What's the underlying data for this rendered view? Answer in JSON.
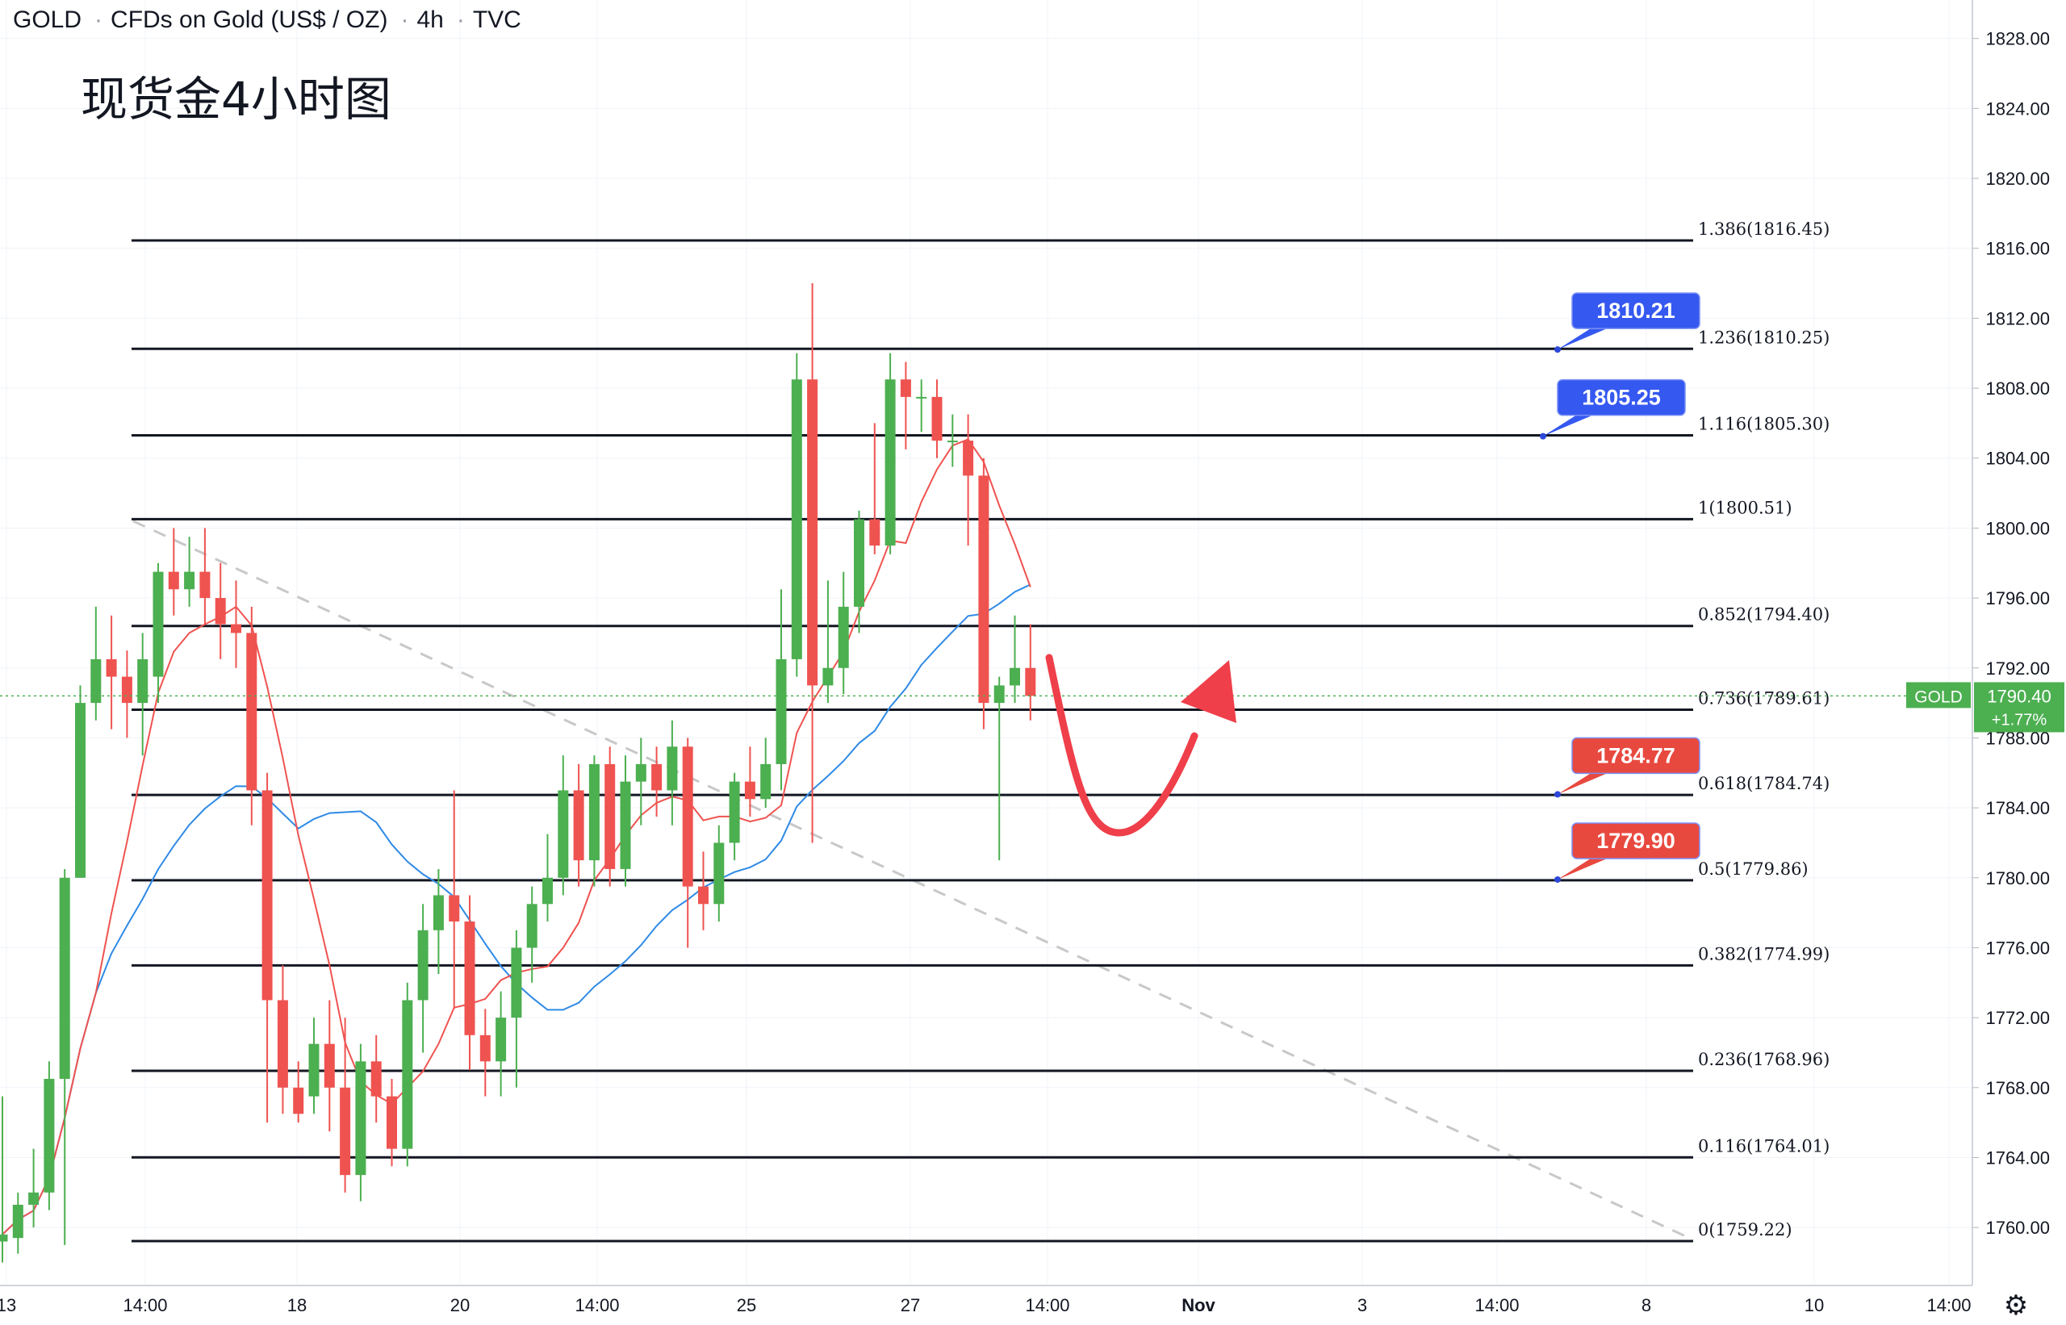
{
  "header": {
    "symbol": "GOLD",
    "description": "CFDs on Gold (US$ / OZ)",
    "interval": "4h",
    "source": "TVC"
  },
  "annotation_title": "现货金4小时图",
  "colors": {
    "up": "#4caf50",
    "down": "#ef5350",
    "ma_fast": "#ef5350",
    "ma_slow": "#2f8ae6",
    "fib_line": "#131722",
    "trendline": "#c8c8c8",
    "callout_blue": "#3558f0",
    "callout_red": "#e8493f",
    "last_price": "#4caf50",
    "arrow": "#ef3f4a"
  },
  "chart_data": {
    "type": "candlestick",
    "y_range": [
      1756.5,
      1829
    ],
    "y_ticks": [
      "1828.00",
      "1824.00",
      "1820.00",
      "1816.00",
      "1812.00",
      "1808.00",
      "1804.00",
      "1800.00",
      "1796.00",
      "1792.00",
      "1788.00",
      "1784.00",
      "1780.00",
      "1776.00",
      "1772.00",
      "1768.00",
      "1764.00",
      "1760.00"
    ],
    "x_ticks": [
      "13",
      "14:00",
      "18",
      "20",
      "14:00",
      "25",
      "27",
      "14:00",
      "Nov",
      "3",
      "14:00",
      "8",
      "10",
      "14:00"
    ],
    "candles": [
      [
        1759.2,
        1759.6,
        1758.0,
        1767.5
      ],
      [
        1759.4,
        1761.3,
        1758.5,
        1762.0
      ],
      [
        1761.3,
        1762.0,
        1760.0,
        1764.5
      ],
      [
        1762.0,
        1768.5,
        1761.0,
        1769.5
      ],
      [
        1768.5,
        1780.0,
        1759.0,
        1780.5
      ],
      [
        1780.0,
        1790.0,
        1780.0,
        1791.0
      ],
      [
        1790.0,
        1792.5,
        1789.0,
        1795.5
      ],
      [
        1792.5,
        1791.5,
        1788.5,
        1795.0
      ],
      [
        1791.5,
        1790.0,
        1788.0,
        1793.0
      ],
      [
        1790.0,
        1792.5,
        1787.0,
        1794.0
      ],
      [
        1791.5,
        1797.5,
        1790.0,
        1798.0
      ],
      [
        1797.5,
        1796.5,
        1795.0,
        1800.0
      ],
      [
        1796.5,
        1797.5,
        1795.5,
        1799.5
      ],
      [
        1797.5,
        1796.0,
        1794.5,
        1800.0
      ],
      [
        1796.0,
        1794.5,
        1792.5,
        1798.0
      ],
      [
        1794.5,
        1794.0,
        1792.0,
        1797.0
      ],
      [
        1794.0,
        1785.0,
        1783.0,
        1795.5
      ],
      [
        1785.0,
        1773.0,
        1766.0,
        1786.0
      ],
      [
        1773.0,
        1768.0,
        1766.5,
        1775.0
      ],
      [
        1768.0,
        1766.5,
        1766.0,
        1769.5
      ],
      [
        1767.5,
        1770.5,
        1766.5,
        1772.0
      ],
      [
        1770.5,
        1768.0,
        1765.5,
        1773.0
      ],
      [
        1768.0,
        1763.0,
        1762.0,
        1772.0
      ],
      [
        1763.0,
        1769.5,
        1761.5,
        1770.5
      ],
      [
        1769.5,
        1767.5,
        1766.0,
        1771.0
      ],
      [
        1767.5,
        1764.5,
        1763.5,
        1768.5
      ],
      [
        1764.5,
        1773.0,
        1763.5,
        1774.0
      ],
      [
        1773.0,
        1777.0,
        1770.0,
        1778.5
      ],
      [
        1777.0,
        1779.0,
        1774.5,
        1780.5
      ],
      [
        1779.0,
        1777.5,
        1772.5,
        1785.0
      ],
      [
        1777.5,
        1771.0,
        1769.0,
        1779.0
      ],
      [
        1771.0,
        1769.5,
        1767.5,
        1772.5
      ],
      [
        1769.5,
        1772.0,
        1767.5,
        1773.5
      ],
      [
        1772.0,
        1776.0,
        1768.0,
        1777.0
      ],
      [
        1776.0,
        1778.5,
        1774.0,
        1779.5
      ],
      [
        1778.5,
        1780.0,
        1777.5,
        1782.5
      ],
      [
        1780.0,
        1785.0,
        1779.0,
        1787.0
      ],
      [
        1785.0,
        1781.0,
        1779.5,
        1786.5
      ],
      [
        1781.0,
        1786.5,
        1779.5,
        1787.0
      ],
      [
        1786.5,
        1780.5,
        1779.5,
        1787.5
      ],
      [
        1780.5,
        1785.5,
        1779.5,
        1787.0
      ],
      [
        1785.5,
        1786.5,
        1783.0,
        1788.0
      ],
      [
        1786.5,
        1785.0,
        1783.5,
        1787.5
      ],
      [
        1785.0,
        1787.5,
        1783.0,
        1789.0
      ],
      [
        1787.5,
        1779.5,
        1776.0,
        1788.0
      ],
      [
        1779.5,
        1778.5,
        1777.0,
        1781.5
      ],
      [
        1778.5,
        1782.0,
        1777.5,
        1783.0
      ],
      [
        1782.0,
        1785.5,
        1781.0,
        1786.0
      ],
      [
        1785.5,
        1784.5,
        1783.5,
        1787.5
      ],
      [
        1784.5,
        1786.5,
        1784.0,
        1788.0
      ],
      [
        1786.5,
        1792.5,
        1785.0,
        1796.5
      ],
      [
        1792.5,
        1808.5,
        1791.5,
        1810.0
      ],
      [
        1808.5,
        1791.0,
        1782.0,
        1814.0
      ],
      [
        1791.0,
        1792.0,
        1790.0,
        1797.0
      ],
      [
        1792.0,
        1795.5,
        1790.5,
        1797.5
      ],
      [
        1795.5,
        1800.5,
        1794.0,
        1801.0
      ],
      [
        1800.5,
        1799.0,
        1798.5,
        1806.0
      ],
      [
        1799.0,
        1808.5,
        1798.5,
        1810.0
      ],
      [
        1808.5,
        1807.5,
        1804.5,
        1809.5
      ],
      [
        1807.5,
        1807.5,
        1805.5,
        1808.5
      ],
      [
        1807.5,
        1805.0,
        1804.0,
        1808.5
      ],
      [
        1805.0,
        1805.0,
        1803.5,
        1806.5
      ],
      [
        1805.0,
        1803.0,
        1799.0,
        1806.5
      ],
      [
        1803.0,
        1790.0,
        1788.5,
        1804.0
      ],
      [
        1790.0,
        1791.0,
        1781.0,
        1791.5
      ],
      [
        1791.0,
        1792.0,
        1790.0,
        1795.0
      ],
      [
        1792.0,
        1790.4,
        1789.0,
        1794.5
      ]
    ],
    "fib_levels": [
      {
        "label": "1.386(1816.45)",
        "value": 1816.45
      },
      {
        "label": "1.236(1810.25)",
        "value": 1810.25
      },
      {
        "label": "1.116(1805.30)",
        "value": 1805.3
      },
      {
        "label": "1(1800.51)",
        "value": 1800.51
      },
      {
        "label": "0.852(1794.40)",
        "value": 1794.4
      },
      {
        "label": "0.736(1789.61)",
        "value": 1789.61
      },
      {
        "label": "0.618(1784.74)",
        "value": 1784.74
      },
      {
        "label": "0.5(1779.86)",
        "value": 1779.86
      },
      {
        "label": "0.382(1774.99)",
        "value": 1774.99
      },
      {
        "label": "0.236(1768.96)",
        "value": 1768.96
      },
      {
        "label": "0.116(1764.01)",
        "value": 1764.01
      },
      {
        "label": "0(1759.22)",
        "value": 1759.22
      }
    ],
    "callouts": [
      {
        "text": "1810.21",
        "value": 1810.21,
        "style": "blue"
      },
      {
        "text": "1805.25",
        "value": 1805.25,
        "style": "blue"
      },
      {
        "text": "1784.77",
        "value": 1784.77,
        "style": "red"
      },
      {
        "text": "1779.90",
        "value": 1779.9,
        "style": "red"
      }
    ],
    "last_price": {
      "symbol": "GOLD",
      "price": "1790.40",
      "change": "+1.77%",
      "value": 1790.4
    }
  }
}
